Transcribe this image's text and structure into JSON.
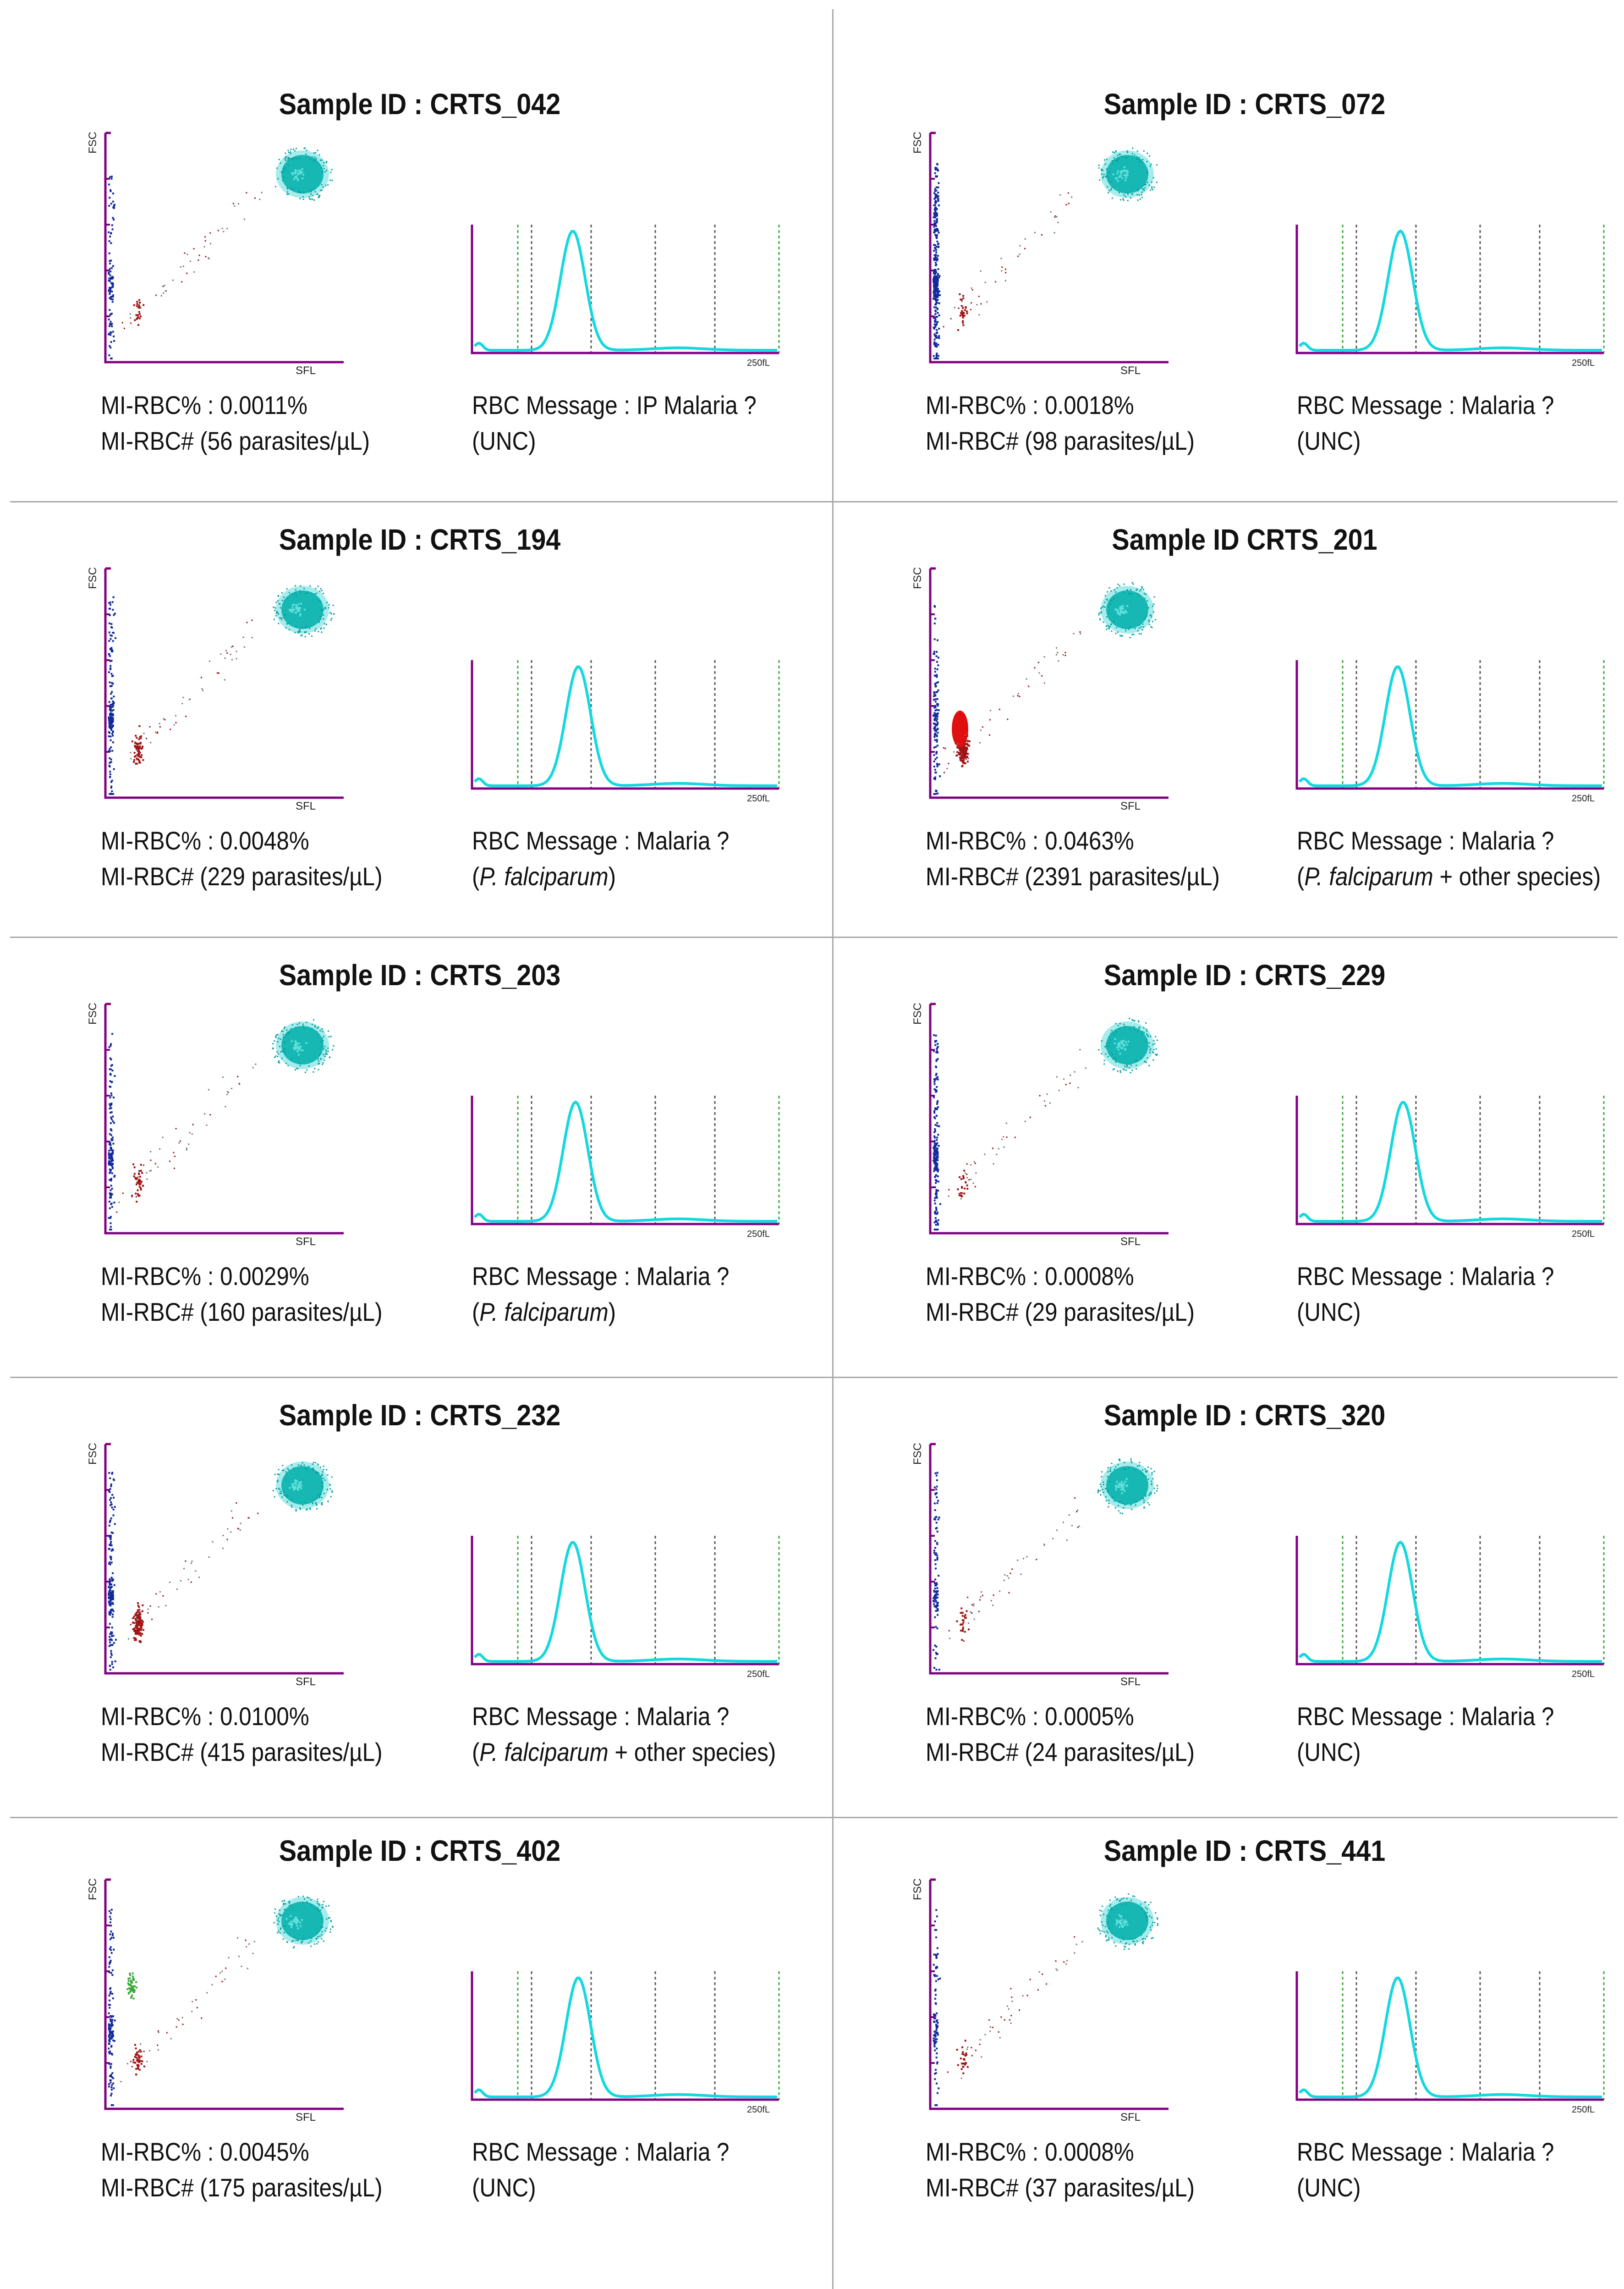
{
  "labels": {
    "fsc_axis": "FSC",
    "sfl_axis": "SFL",
    "hist_tick": "250fL"
  },
  "colors": {
    "axis": "#800080",
    "cyan": "#00c8c8",
    "blue": "#102a9c",
    "red": "#a01414",
    "green": "#38a838",
    "dotted": "#555555"
  },
  "panels": [
    {
      "title": "Sample ID : CRTS_042",
      "mi_pct": "MI-RBC% : 0.0011%",
      "mi_abs": "MI-RBC# (56 parasites/µL)",
      "msg": "RBC Message : IP Malaria ?",
      "note_pre": "(UNC)",
      "note_italic": "",
      "note_post": "",
      "dots": {
        "blue": 70,
        "red": 25,
        "green": 0,
        "redBlob": 0
      }
    },
    {
      "title": "Sample ID : CRTS_072",
      "mi_pct": "MI-RBC% : 0.0018%",
      "mi_abs": "MI-RBC# (98 parasites/µL)",
      "msg": "RBC Message : Malaria ?",
      "note_pre": "(UNC)",
      "note_italic": "",
      "note_post": "",
      "dots": {
        "blue": 260,
        "red": 30,
        "green": 0,
        "redBlob": 0
      }
    },
    {
      "title": "Sample ID : CRTS_194",
      "mi_pct": "MI-RBC% : 0.0048%",
      "mi_abs": "MI-RBC# (229 parasites/µL)",
      "msg": "RBC Message : Malaria ?",
      "note_pre": "(",
      "note_italic": "P. falciparum",
      "note_post": ")",
      "dots": {
        "blue": 120,
        "red": 70,
        "green": 0,
        "redBlob": 0
      }
    },
    {
      "title": "Sample ID CRTS_201",
      "mi_pct": "MI-RBC% : 0.0463%",
      "mi_abs": "MI-RBC# (2391 parasites/µL)",
      "msg": "RBC Message : Malaria ?",
      "note_pre": "(",
      "note_italic": "P. falciparum",
      "note_post": " + other species)",
      "dots": {
        "blue": 90,
        "red": 220,
        "green": 0,
        "redBlob": 1
      }
    },
    {
      "title": "Sample ID : CRTS_203",
      "mi_pct": "MI-RBC% : 0.0029%",
      "mi_abs": "MI-RBC# (160 parasites/µL)",
      "msg": "RBC Message : Malaria ?",
      "note_pre": "(",
      "note_italic": "P. falciparum",
      "note_post": ")",
      "dots": {
        "blue": 90,
        "red": 45,
        "green": 0,
        "redBlob": 0
      }
    },
    {
      "title": "Sample ID : CRTS_229",
      "mi_pct": "MI-RBC% : 0.0008%",
      "mi_abs": "MI-RBC# (29 parasites/µL)",
      "msg": "RBC Message : Malaria ?",
      "note_pre": "(UNC)",
      "note_italic": "",
      "note_post": "",
      "dots": {
        "blue": 130,
        "red": 20,
        "green": 0,
        "redBlob": 0
      }
    },
    {
      "title": "Sample ID : CRTS_232",
      "mi_pct": "MI-RBC% : 0.0100%",
      "mi_abs": "MI-RBC# (415 parasites/µL)",
      "msg": "RBC Message : Malaria ?",
      "note_pre": "(",
      "note_italic": "P. falciparum",
      "note_post": " + other species)",
      "dots": {
        "blue": 120,
        "red": 140,
        "green": 0,
        "redBlob": 0
      }
    },
    {
      "title": "Sample ID : CRTS_320",
      "mi_pct": "MI-RBC% : 0.0005%",
      "mi_abs": "MI-RBC# (24 parasites/µL)",
      "msg": "RBC Message : Malaria ?",
      "note_pre": "(UNC)",
      "note_italic": "",
      "note_post": "",
      "dots": {
        "blue": 70,
        "red": 25,
        "green": 0,
        "redBlob": 0
      }
    },
    {
      "title": "Sample ID : CRTS_402",
      "mi_pct": "MI-RBC% : 0.0045%",
      "mi_abs": "MI-RBC# (175 parasites/µL)",
      "msg": "RBC Message : Malaria ?",
      "note_pre": "(UNC)",
      "note_italic": "",
      "note_post": "",
      "dots": {
        "blue": 90,
        "red": 40,
        "green": 60,
        "redBlob": 0
      }
    },
    {
      "title": "Sample ID : CRTS_441",
      "mi_pct": "MI-RBC% : 0.0008%",
      "mi_abs": "MI-RBC# (37 parasites/µL)",
      "msg": "RBC Message : Malaria ?",
      "note_pre": "(UNC)",
      "note_italic": "",
      "note_post": "",
      "dots": {
        "blue": 60,
        "red": 25,
        "green": 0,
        "redBlob": 0
      }
    }
  ]
}
